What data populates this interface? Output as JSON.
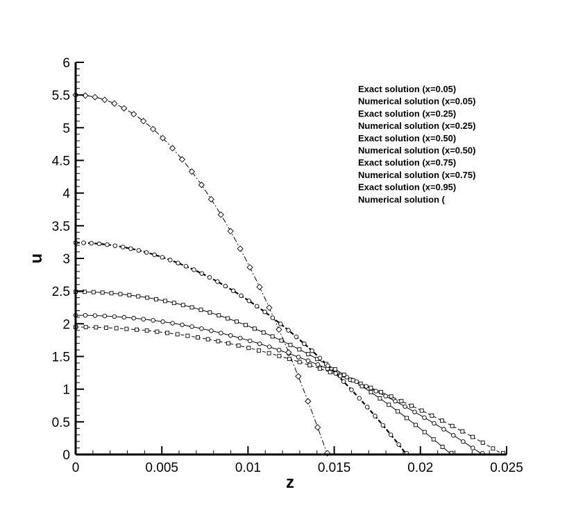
{
  "chart_data": {
    "type": "line",
    "xlabel": "z",
    "ylabel": "u",
    "xlim": [
      0,
      0.025
    ],
    "ylim": [
      0,
      6
    ],
    "xticks": [
      {
        "value": 0,
        "label": "0"
      },
      {
        "value": 0.005,
        "label": "0.005"
      },
      {
        "value": 0.01,
        "label": "0.01"
      },
      {
        "value": 0.015,
        "label": "0.015"
      },
      {
        "value": 0.02,
        "label": "0.02"
      },
      {
        "value": 0.025,
        "label": "0.025"
      }
    ],
    "yticks": [
      {
        "value": 0,
        "label": "0"
      },
      {
        "value": 0.5,
        "label": "0.5"
      },
      {
        "value": 1,
        "label": "1"
      },
      {
        "value": 1.5,
        "label": "1.5"
      },
      {
        "value": 2,
        "label": "2"
      },
      {
        "value": 2.5,
        "label": "2.5"
      },
      {
        "value": 3,
        "label": "3"
      },
      {
        "value": 3.5,
        "label": "3.5"
      },
      {
        "value": 4,
        "label": "4"
      },
      {
        "value": 4.5,
        "label": "4.5"
      },
      {
        "value": 5,
        "label": "5"
      },
      {
        "value": 5.5,
        "label": "5.5"
      },
      {
        "value": 6,
        "label": "6"
      }
    ],
    "grid": false,
    "legend_position": "top-right",
    "legend": [
      "Exact solution (x=0.05)",
      "Numerical solution (x=0.05)",
      "Exact solution (x=0.25)",
      "Numerical solution (x=0.25)",
      "Exact solution (x=0.50)",
      "Numerical solution (x=0.50)",
      "Exact solution (x=0.75)",
      "Numerical solution (x=0.75)",
      "Exact solution (x=0.95)",
      "Numerical solution ("
    ],
    "series": [
      {
        "name": "x=0.05",
        "u0": 1.95,
        "zmax": 0.0248,
        "marker": "square",
        "dash": "dash"
      },
      {
        "name": "x=0.25",
        "u0": 2.13,
        "zmax": 0.0236,
        "marker": "circle",
        "dash": "solid"
      },
      {
        "name": "x=0.50",
        "u0": 2.49,
        "zmax": 0.0218,
        "marker": "square",
        "dash": "solid"
      },
      {
        "name": "x=0.75",
        "u0": 3.24,
        "zmax": 0.0192,
        "marker": "circle",
        "dash": "dashbold"
      },
      {
        "name": "x=0.95",
        "u0": 5.5,
        "zmax": 0.0146,
        "marker": "diamond",
        "dash": "dashdot"
      }
    ]
  }
}
